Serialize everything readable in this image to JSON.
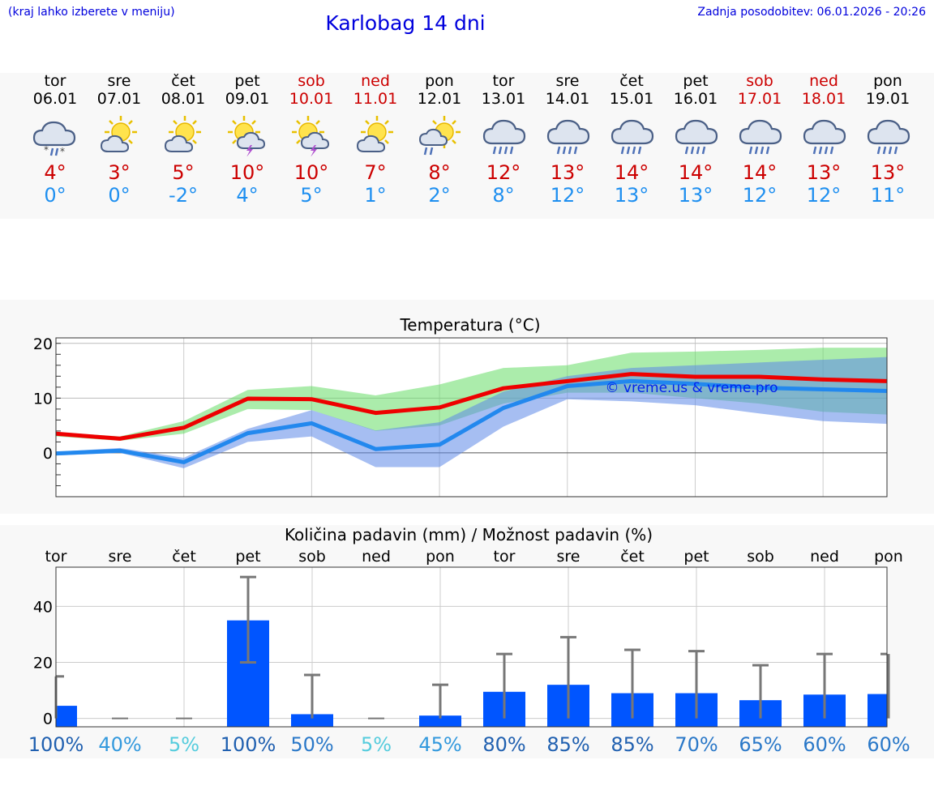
{
  "header": {
    "hint": "(kraj lahko izberete v meniju)",
    "title": "Karlobag 14 dni",
    "updated": "Zadnja posodobitev: 06.01.2026 - 20:26"
  },
  "days": [
    {
      "name": "tor",
      "date": "06.01",
      "max": "4°",
      "min": "0°",
      "icon": "cloud-rain-snow-icon",
      "weekend": false
    },
    {
      "name": "sre",
      "date": "07.01",
      "max": "3°",
      "min": "0°",
      "icon": "sun-cloud-icon",
      "weekend": false
    },
    {
      "name": "čet",
      "date": "08.01",
      "max": "5°",
      "min": "-2°",
      "icon": "sun-cloud-icon",
      "weekend": false
    },
    {
      "name": "pet",
      "date": "09.01",
      "max": "10°",
      "min": "4°",
      "icon": "sun-storm-icon",
      "weekend": false
    },
    {
      "name": "sob",
      "date": "10.01",
      "max": "10°",
      "min": "5°",
      "icon": "sun-storm-icon",
      "weekend": true
    },
    {
      "name": "ned",
      "date": "11.01",
      "max": "7°",
      "min": "1°",
      "icon": "sun-cloud-icon",
      "weekend": true
    },
    {
      "name": "pon",
      "date": "12.01",
      "max": "8°",
      "min": "2°",
      "icon": "sun-cloud-rain-icon",
      "weekend": false
    },
    {
      "name": "tor",
      "date": "13.01",
      "max": "12°",
      "min": "8°",
      "icon": "cloud-rain-icon",
      "weekend": false
    },
    {
      "name": "sre",
      "date": "14.01",
      "max": "13°",
      "min": "12°",
      "icon": "cloud-rain-icon",
      "weekend": false
    },
    {
      "name": "čet",
      "date": "15.01",
      "max": "14°",
      "min": "13°",
      "icon": "cloud-rain-icon",
      "weekend": false
    },
    {
      "name": "pet",
      "date": "16.01",
      "max": "14°",
      "min": "13°",
      "icon": "cloud-rain-icon",
      "weekend": false
    },
    {
      "name": "sob",
      "date": "17.01",
      "max": "14°",
      "min": "12°",
      "icon": "cloud-rain-icon",
      "weekend": true
    },
    {
      "name": "ned",
      "date": "18.01",
      "max": "13°",
      "min": "12°",
      "icon": "cloud-rain-icon",
      "weekend": true
    },
    {
      "name": "pon",
      "date": "19.01",
      "max": "13°",
      "min": "11°",
      "icon": "cloud-rain-icon",
      "weekend": false
    }
  ],
  "chart_data": [
    {
      "type": "line",
      "title": "Temperatura (°C)",
      "watermark": "© vreme.us & vreme.pro",
      "ylim": [
        -8,
        21
      ],
      "yticks": [
        "20",
        "10",
        "0"
      ],
      "series": [
        {
          "name": "max",
          "color": "#ee0000",
          "values": [
            3.5,
            2.6,
            4.6,
            9.9,
            9.8,
            7.3,
            8.3,
            11.8,
            13.1,
            14.4,
            13.9,
            13.9,
            13.4,
            13.1
          ]
        },
        {
          "name": "min",
          "color": "#2288ee",
          "values": [
            -0.1,
            0.4,
            -1.7,
            3.6,
            5.4,
            0.7,
            1.5,
            8.2,
            12.2,
            13.1,
            12.6,
            11.9,
            11.6,
            11.3
          ]
        },
        {
          "name": "max-band-low",
          "values": [
            3.0,
            2.2,
            3.5,
            8.0,
            7.8,
            4.0,
            5.0,
            9.0,
            11.0,
            11.0,
            10.0,
            9.0,
            7.5,
            7.0
          ]
        },
        {
          "name": "max-band-high",
          "values": [
            3.8,
            3.0,
            5.8,
            11.5,
            12.2,
            10.5,
            12.5,
            15.5,
            16.0,
            18.3,
            18.5,
            18.8,
            19.2,
            19.2
          ]
        },
        {
          "name": "min-band-low",
          "values": [
            -0.5,
            0.0,
            -2.8,
            2.0,
            3.0,
            -2.6,
            -2.6,
            4.8,
            9.8,
            9.4,
            8.7,
            7.2,
            5.8,
            5.3
          ]
        },
        {
          "name": "min-band-high",
          "values": [
            0.2,
            0.9,
            -0.9,
            4.4,
            7.8,
            4.1,
            5.6,
            11.2,
            14.0,
            15.5,
            16.0,
            16.5,
            17.0,
            17.5
          ]
        }
      ]
    },
    {
      "type": "bar",
      "title": "Količina padavin (mm) / Možnost padavin (%)",
      "categories": [
        "tor",
        "sre",
        "čet",
        "pet",
        "sob",
        "ned",
        "pon",
        "tor",
        "sre",
        "čet",
        "pet",
        "sob",
        "ned",
        "pon"
      ],
      "ylim": [
        -3,
        54
      ],
      "yticks": [
        "40",
        "20",
        "0"
      ],
      "values": [
        4.5,
        0,
        0,
        35,
        1.5,
        0,
        1,
        9.5,
        12,
        9,
        9,
        6.5,
        8.5,
        8.7
      ],
      "error_high": [
        15,
        0,
        0,
        50.5,
        15.5,
        0,
        12,
        23,
        29,
        24.5,
        24,
        19,
        23,
        23
      ],
      "error_low": [
        0,
        0,
        0,
        20,
        0,
        0,
        0,
        0,
        0,
        0,
        0,
        0,
        0,
        0
      ],
      "probability": [
        "100%",
        "40%",
        "5%",
        "100%",
        "50%",
        "5%",
        "45%",
        "80%",
        "85%",
        "85%",
        "70%",
        "65%",
        "60%",
        "60%"
      ],
      "probability_colors": [
        "#2060b0",
        "#3399dd",
        "#55ccdd",
        "#2060b0",
        "#2a78c8",
        "#55ccdd",
        "#3399dd",
        "#2060b0",
        "#2060b0",
        "#2060b0",
        "#2a78c8",
        "#2a78c8",
        "#2a78c8",
        "#2a78c8"
      ],
      "bar_color": "#0055ff"
    }
  ]
}
